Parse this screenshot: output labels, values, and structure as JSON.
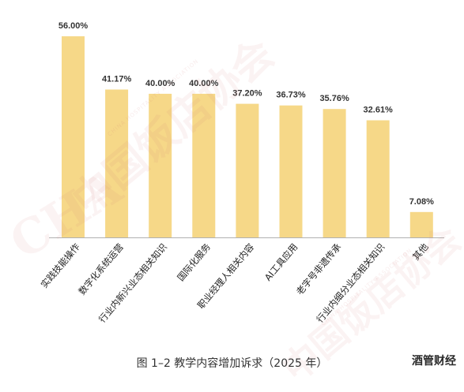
{
  "chart_data": {
    "type": "bar",
    "categories": [
      "实践技能操作",
      "数字化系统运营",
      "行业内新兴业态相关知识",
      "国际化服务",
      "职业经理人相关内容",
      "AI工具应用",
      "老字号非遗传承",
      "行业内细分业态相关知识",
      "其他"
    ],
    "values": [
      56.0,
      41.17,
      40.0,
      40.0,
      37.2,
      36.73,
      35.76,
      32.61,
      7.08
    ],
    "value_labels": [
      "56.00%",
      "41.17%",
      "40.00%",
      "40.00%",
      "37.20%",
      "36.73%",
      "35.76%",
      "32.61%",
      "7.08%"
    ],
    "ylim": [
      0,
      60
    ],
    "grid": false,
    "legend": "none",
    "bar_color": "#f6d888",
    "baseline_color": "#b0b0b0"
  },
  "caption": "图 1–2  教学内容增加诉求（2025 年）",
  "brand": "酒管财经",
  "watermark": {
    "chinese": "中国饭店协会",
    "english": "CHINA HOSPITALITY ASSOCIATION"
  }
}
